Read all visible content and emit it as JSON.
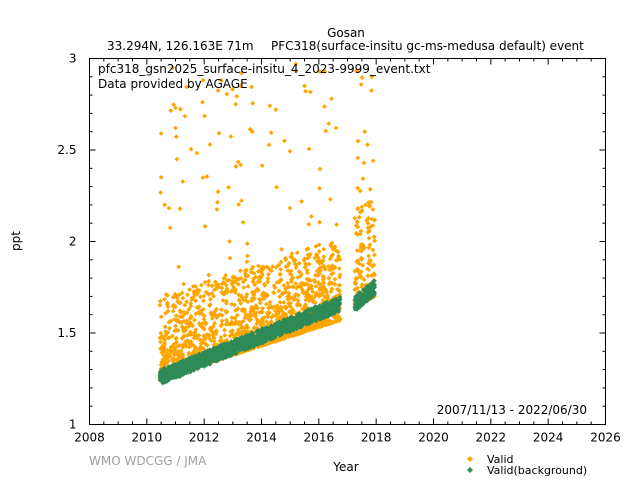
{
  "chart_data": {
    "type": "scatter",
    "title": "Gosan",
    "subtitle_left": "33.294N, 126.163E 71m",
    "subtitle_right": "PFC318(surface-insitu gc-ms-medusa default) event",
    "xlabel": "Year",
    "ylabel": "ppt",
    "xlim": [
      2008,
      2026
    ],
    "ylim": [
      1,
      3
    ],
    "x_ticks": [
      "2008",
      "2010",
      "2012",
      "2014",
      "2016",
      "2018",
      "2020",
      "2022",
      "2024",
      "2026"
    ],
    "y_ticks": [
      "1",
      "1.5",
      "2",
      "2.5",
      "3"
    ],
    "annotation_file": "pfc318_gsn2025_surface-insitu_4_2023-9999_event.txt",
    "annotation_provider": "Data provided by AGAGE",
    "date_range": "2007/11/13 - 2022/06/30",
    "credit": "WMO WDCGG / JMA",
    "grid": false,
    "legend_position": "bottom-right",
    "series": [
      {
        "name": "Valid",
        "color": "#ffa500",
        "marker": "diamond",
        "segments": [
          {
            "x_start": 2010.45,
            "x_end": 2016.75,
            "baseline_start": 1.25,
            "baseline_end": 1.57,
            "spread": 0.45,
            "peak_max": 2.95
          },
          {
            "x_start": 2017.25,
            "x_end": 2017.95,
            "baseline_start": 1.64,
            "baseline_end": 1.7,
            "spread": 0.55,
            "peak_max": 2.95
          }
        ],
        "notable_points": [
          {
            "x": 2010.5,
            "y": 2.59
          },
          {
            "x": 2010.5,
            "y": 2.35
          },
          {
            "x": 2010.9,
            "y": 2.95
          },
          {
            "x": 2011.0,
            "y": 2.73
          },
          {
            "x": 2011.0,
            "y": 2.62
          },
          {
            "x": 2011.05,
            "y": 2.45
          },
          {
            "x": 2012.2,
            "y": 2.53
          },
          {
            "x": 2012.6,
            "y": 2.88
          },
          {
            "x": 2013.1,
            "y": 2.75
          },
          {
            "x": 2013.3,
            "y": 2.92
          },
          {
            "x": 2014.5,
            "y": 2.72
          },
          {
            "x": 2014.8,
            "y": 2.55
          },
          {
            "x": 2015.2,
            "y": 2.97
          },
          {
            "x": 2015.5,
            "y": 2.85
          },
          {
            "x": 2016.2,
            "y": 2.93
          },
          {
            "x": 2016.45,
            "y": 2.78
          },
          {
            "x": 2016.6,
            "y": 2.62
          },
          {
            "x": 2017.35,
            "y": 2.93
          },
          {
            "x": 2017.6,
            "y": 2.6
          },
          {
            "x": 2017.85,
            "y": 2.9
          }
        ]
      },
      {
        "name": "Valid(background)",
        "color": "#2e8b57",
        "marker": "diamond",
        "segments": [
          {
            "x_start": 2010.45,
            "x_end": 2016.75,
            "baseline_start": 1.23,
            "baseline_end": 1.63,
            "spread": 0.08
          },
          {
            "x_start": 2017.25,
            "x_end": 2017.95,
            "baseline_start": 1.63,
            "baseline_end": 1.72,
            "spread": 0.08
          }
        ]
      }
    ]
  }
}
